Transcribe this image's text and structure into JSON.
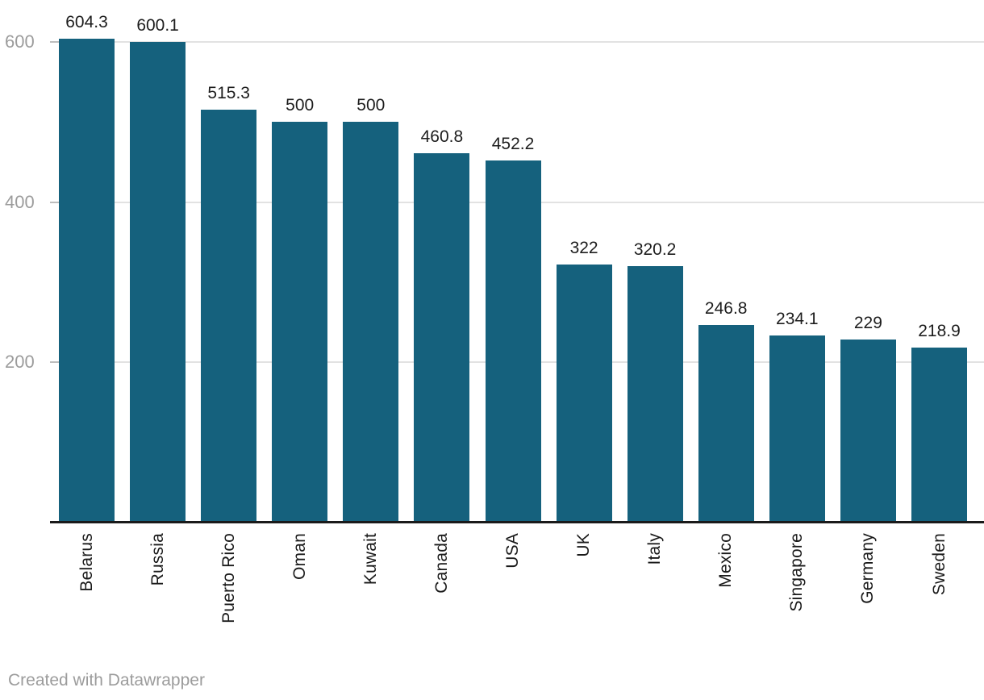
{
  "chart_data": {
    "type": "bar",
    "categories": [
      "Belarus",
      "Russia",
      "Puerto Rico",
      "Oman",
      "Kuwait",
      "Canada",
      "USA",
      "UK",
      "Italy",
      "Mexico",
      "Singapore",
      "Germany",
      "Sweden"
    ],
    "values": [
      604.3,
      600.1,
      515.3,
      500,
      500,
      460.8,
      452.2,
      322,
      320.2,
      246.8,
      234.1,
      229,
      218.9
    ],
    "value_labels": [
      "604.3",
      "600.1",
      "515.3",
      "500",
      "500",
      "460.8",
      "452.2",
      "322",
      "320.2",
      "246.8",
      "234.1",
      "229",
      "218.9"
    ],
    "title": "",
    "xlabel": "",
    "ylabel": "",
    "y_ticks": [
      200,
      400,
      600
    ],
    "y_tick_labels": [
      "200",
      "400",
      "600"
    ],
    "ylim": [
      0,
      620
    ],
    "grid": "horizontal-only",
    "legend": "none",
    "bar_orientation": "vertical",
    "x_label_rotation": -90
  },
  "footer": {
    "credit": "Created with Datawrapper"
  },
  "colors": {
    "background": "#ffffff",
    "bar": "#15617d",
    "gridline": "#e2e2e2",
    "tick_stub": "#bdbdbd",
    "axis_line": "#1a1a1a",
    "y_tick_label": "#9c9c9c",
    "value_label": "#1d1d1d",
    "category_label": "#1a1a1a",
    "credit": "#9c9c9c"
  }
}
